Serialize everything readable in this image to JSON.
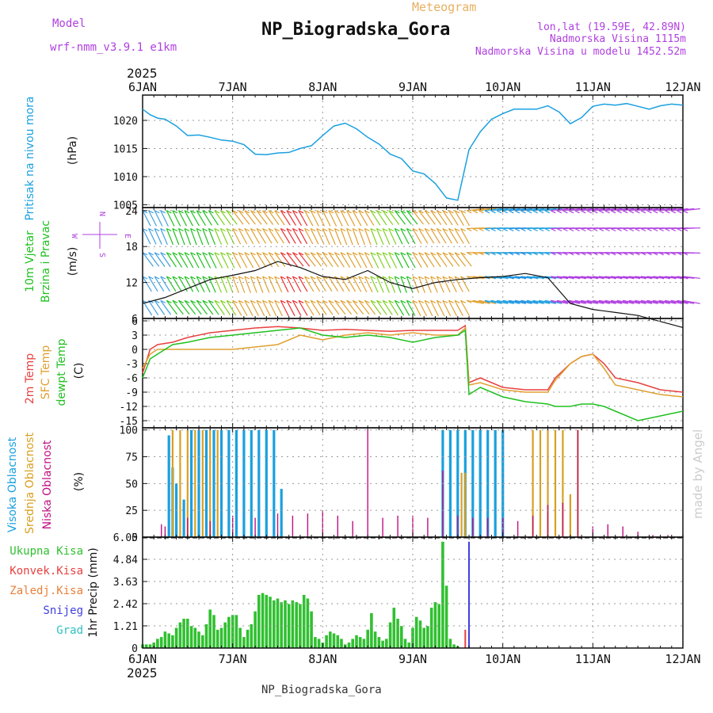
{
  "header": {
    "model_label": "Model",
    "model_name": "wrf-nmm_v3.9.1 e1km",
    "meteogram_label": "Meteogram",
    "station_title": "NP_Biogradska_Gora",
    "lonlat": "lon,lat (19.59E, 42.89N)",
    "altitude": "Nadmorska Visina 1115m",
    "model_altitude": "Nadmorska Visina u modelu 1452.52m",
    "footer_station": "NP_Biogradska_Gora",
    "credit": "made by Angel",
    "year_top": "2025",
    "year_bottom": "2025",
    "wind_rose": [
      "N",
      "E",
      "S",
      "W"
    ]
  },
  "colors": {
    "pressure": "#1aa0e0",
    "t2m": "#e84040",
    "sfc": "#e0a030",
    "dewpt": "#20c020",
    "high_cloud": "#1aa0e0",
    "mid_cloud": "#d8a020",
    "low_cloud": "#c01080",
    "rain": "#30c030",
    "conv": "#e84040",
    "snow": "#4040e0",
    "grad": "#30c0c0",
    "wind_label": "#20c020",
    "wind_dir_label": "#b040e0",
    "purple_text": "#b040e0",
    "orange_text": "#e8b060"
  },
  "chart_data": [
    {
      "type": "line",
      "id": "pressure",
      "ylabel": [
        "Pritisak na nivou mora",
        "(hPa)"
      ],
      "x_ticks": [
        "6JAN",
        "7JAN",
        "8JAN",
        "9JAN",
        "10JAN",
        "11JAN",
        "12JAN"
      ],
      "ylim": [
        1004.5,
        1024.5
      ],
      "yticks": [
        1005,
        1010,
        1015,
        1020
      ],
      "grid": true,
      "series": [
        {
          "x": [
            0,
            2,
            4,
            6,
            9,
            12,
            15,
            18,
            21,
            24,
            27,
            30,
            33,
            36,
            39,
            42,
            45,
            48,
            51,
            54,
            57,
            60,
            63,
            66,
            69,
            72,
            75,
            78,
            81,
            84,
            87,
            90,
            93,
            96,
            99,
            102,
            105,
            108,
            111,
            114,
            117,
            120,
            123,
            126,
            129,
            132,
            135,
            138,
            141,
            144
          ],
          "y": [
            1022,
            1021,
            1020.4,
            1020.2,
            1019,
            1017.3,
            1017.4,
            1017,
            1016.5,
            1016.3,
            1015.7,
            1014,
            1013.9,
            1014.2,
            1014.3,
            1015,
            1015.5,
            1017.3,
            1019,
            1019.5,
            1018.5,
            1017,
            1015.8,
            1014,
            1013.2,
            1011,
            1010.5,
            1008.8,
            1006.2,
            1005.8,
            1014.8,
            1018,
            1020.2,
            1021.2,
            1022,
            1022,
            1022,
            1022.6,
            1021.5,
            1019.4,
            1020.5,
            1022.5,
            1022.9,
            1022.7,
            1023,
            1022.5,
            1022,
            1022.6,
            1022.9,
            1022.7
          ]
        }
      ]
    },
    {
      "type": "line",
      "id": "wind",
      "ylabel": [
        "10m Vjetar",
        "Brzina i Pravac",
        "(m/s)"
      ],
      "ylim": [
        6,
        24.5
      ],
      "yticks": [
        6,
        12,
        18,
        24
      ],
      "grid": true,
      "series": [
        {
          "name": "speed",
          "x": [
            0,
            6,
            12,
            18,
            24,
            30,
            36,
            42,
            48,
            54,
            60,
            66,
            72,
            78,
            84,
            90,
            96,
            102,
            108,
            114,
            120,
            126,
            132,
            138,
            144
          ],
          "y": [
            8.5,
            9.5,
            11,
            12.5,
            13.2,
            14,
            15.5,
            14.5,
            13,
            12.5,
            14,
            12,
            11,
            12,
            12.5,
            12.8,
            13,
            13.5,
            12.8,
            8.5,
            7.5,
            7,
            6.5,
            5.5,
            4.5
          ]
        }
      ]
    },
    {
      "type": "line",
      "id": "temperature",
      "ylabel": [
        "2m Temp",
        "SFC Temp",
        "dewpt Temp",
        "(C)"
      ],
      "ylim": [
        -16.5,
        6.5
      ],
      "yticks": [
        6,
        3,
        0,
        -3,
        -6,
        -9,
        -12,
        -15
      ],
      "grid": true,
      "series": [
        {
          "name": "2m Temp",
          "x": [
            0,
            2,
            4,
            8,
            12,
            18,
            24,
            30,
            36,
            42,
            48,
            54,
            60,
            66,
            72,
            78,
            84,
            86,
            87,
            90,
            96,
            102,
            108,
            110,
            114,
            117,
            120,
            123,
            126,
            132,
            138,
            144
          ],
          "y": [
            -5,
            0,
            1,
            1.5,
            2.5,
            3.5,
            4,
            4.5,
            4.8,
            4.5,
            4,
            4.2,
            4,
            3.8,
            4,
            4,
            4,
            5,
            -7,
            -6,
            -8,
            -8.5,
            -8.5,
            -6,
            -3,
            -1.5,
            -1,
            -3,
            -6,
            -7,
            -8.5,
            -9
          ]
        },
        {
          "name": "SFC Temp",
          "x": [
            0,
            2,
            4,
            8,
            12,
            18,
            24,
            30,
            36,
            42,
            48,
            54,
            60,
            66,
            72,
            78,
            84,
            86,
            87,
            90,
            96,
            102,
            108,
            110,
            114,
            117,
            120,
            123,
            126,
            132,
            138,
            144
          ],
          "y": [
            -4,
            -1,
            0,
            0,
            0,
            0,
            0,
            0.5,
            1,
            3,
            2,
            3,
            3.5,
            3,
            3.5,
            3,
            3,
            4.5,
            -7.5,
            -7,
            -8.5,
            -9,
            -9,
            -6.5,
            -3,
            -1.5,
            -1,
            -4,
            -7.5,
            -8.5,
            -9.5,
            -10
          ]
        },
        {
          "name": "dewpt Temp",
          "x": [
            0,
            2,
            4,
            8,
            12,
            18,
            24,
            30,
            36,
            42,
            48,
            54,
            60,
            66,
            72,
            78,
            84,
            86,
            87,
            90,
            96,
            102,
            108,
            110,
            114,
            117,
            120,
            123,
            126,
            132,
            138,
            144
          ],
          "y": [
            -6,
            -2,
            -1,
            1,
            1.5,
            2.5,
            3,
            3.5,
            4,
            4.5,
            3,
            2.5,
            3,
            2.5,
            1.5,
            2.5,
            3,
            4,
            -9.5,
            -8,
            -10,
            -11,
            -11.5,
            -12,
            -12,
            -11.5,
            -11.5,
            -12,
            -13,
            -15,
            -14,
            -13
          ]
        }
      ]
    },
    {
      "type": "bar",
      "id": "clouds",
      "ylabel": [
        "Visoka Oblacnost",
        "Srednja Oblacnost",
        "Niska Oblacnost",
        "(%)"
      ],
      "ylim": [
        0,
        102
      ],
      "yticks": [
        0,
        25,
        50,
        75,
        100
      ],
      "grid": true,
      "series": [
        {
          "name": "Visoka Oblacnost",
          "x": [
            7,
            8,
            9,
            11,
            13,
            15,
            17,
            19,
            21,
            23,
            25,
            27,
            29,
            31,
            33,
            35,
            37,
            80,
            82,
            84,
            86,
            88,
            90,
            92,
            94,
            96
          ],
          "y": [
            95,
            65,
            50,
            35,
            100,
            100,
            100,
            100,
            100,
            100,
            100,
            100,
            100,
            100,
            100,
            100,
            45,
            100,
            100,
            100,
            100,
            100,
            100,
            100,
            100,
            100
          ]
        },
        {
          "name": "Srednja Oblacnost",
          "x": [
            8,
            10,
            12,
            14,
            16,
            18,
            20,
            104,
            106,
            108,
            110,
            112,
            114,
            116,
            85,
            86
          ],
          "y": [
            100,
            100,
            100,
            100,
            100,
            100,
            100,
            100,
            100,
            100,
            100,
            100,
            40,
            100,
            60,
            60
          ]
        },
        {
          "name": "Niska Oblacnost",
          "x": [
            5,
            6,
            12,
            18,
            24,
            30,
            36,
            40,
            44,
            48,
            52,
            56,
            60,
            64,
            68,
            72,
            76,
            80,
            84,
            88,
            92,
            96,
            100,
            104,
            108,
            112,
            116,
            120,
            124,
            128,
            132,
            136,
            140,
            144
          ],
          "y": [
            12,
            10,
            18,
            15,
            20,
            18,
            22,
            20,
            22,
            25,
            20,
            15,
            100,
            18,
            20,
            20,
            18,
            62,
            20,
            18,
            18,
            18,
            15,
            20,
            30,
            32,
            100,
            10,
            12,
            10,
            5,
            2,
            2,
            2
          ]
        }
      ]
    },
    {
      "type": "bar",
      "id": "precip",
      "ylabel": [
        "1hr Precip (mm)"
      ],
      "x_ticks": [
        "6JAN",
        "7JAN",
        "8JAN",
        "9JAN",
        "10JAN",
        "11JAN",
        "12JAN"
      ],
      "ylim": [
        0,
        6.05
      ],
      "yticks": [
        0,
        1.21,
        2.42,
        3.63,
        4.84,
        6.05
      ],
      "grid": true,
      "legend": [
        "Ukupna Kisa",
        "Konvek.Kisa",
        "Zaledj.Kisa",
        "Snijeg",
        "Grad"
      ],
      "series": [
        {
          "name": "Ukupna Kisa",
          "x": [
            0,
            1,
            2,
            3,
            4,
            5,
            6,
            7,
            8,
            9,
            10,
            11,
            12,
            13,
            14,
            15,
            16,
            17,
            18,
            19,
            20,
            21,
            22,
            23,
            24,
            25,
            26,
            27,
            28,
            29,
            30,
            31,
            32,
            33,
            34,
            35,
            36,
            37,
            38,
            39,
            40,
            41,
            42,
            43,
            44,
            45,
            46,
            47,
            48,
            49,
            50,
            51,
            52,
            53,
            54,
            55,
            56,
            57,
            58,
            59,
            60,
            61,
            62,
            63,
            64,
            65,
            66,
            67,
            68,
            69,
            70,
            71,
            72,
            73,
            74,
            75,
            76,
            77,
            78,
            79,
            80,
            81,
            82,
            83,
            84,
            85,
            86,
            87,
            88,
            89,
            90,
            91,
            92,
            93,
            94
          ],
          "y": [
            0.2,
            0.2,
            0.2,
            0.3,
            0.5,
            0.6,
            0.9,
            0.8,
            0.7,
            1.1,
            1.4,
            1.6,
            1.6,
            1.2,
            1.1,
            0.9,
            0.7,
            1.3,
            2.1,
            1.8,
            1.0,
            1.1,
            1.4,
            1.7,
            1.8,
            1.8,
            1.1,
            0.6,
            1.0,
            1.3,
            2.0,
            2.9,
            3.0,
            2.9,
            2.8,
            2.6,
            2.7,
            2.5,
            2.6,
            2.4,
            2.6,
            2.5,
            2.4,
            2.9,
            2.7,
            2.0,
            0.6,
            0.5,
            0.3,
            0.7,
            0.9,
            0.8,
            0.7,
            0.5,
            0.2,
            0.3,
            0.5,
            0.7,
            0.6,
            0.5,
            1.0,
            1.9,
            0.9,
            0.6,
            0.4,
            0.5,
            1.4,
            2.2,
            1.6,
            1.2,
            0.5,
            0.3,
            1.1,
            1.7,
            1.5,
            1.1,
            1.2,
            2.2,
            2.5,
            2.4,
            5.8,
            3.4,
            0.5,
            0.2,
            0.1,
            0,
            0,
            0,
            0,
            0,
            0,
            0,
            0,
            0,
            0
          ]
        },
        {
          "name": "Snijeg",
          "x": [
            87
          ],
          "y": [
            5.8
          ]
        },
        {
          "name": "Konvek.Kisa",
          "x": [
            86
          ],
          "y": [
            1.0
          ]
        }
      ]
    }
  ]
}
